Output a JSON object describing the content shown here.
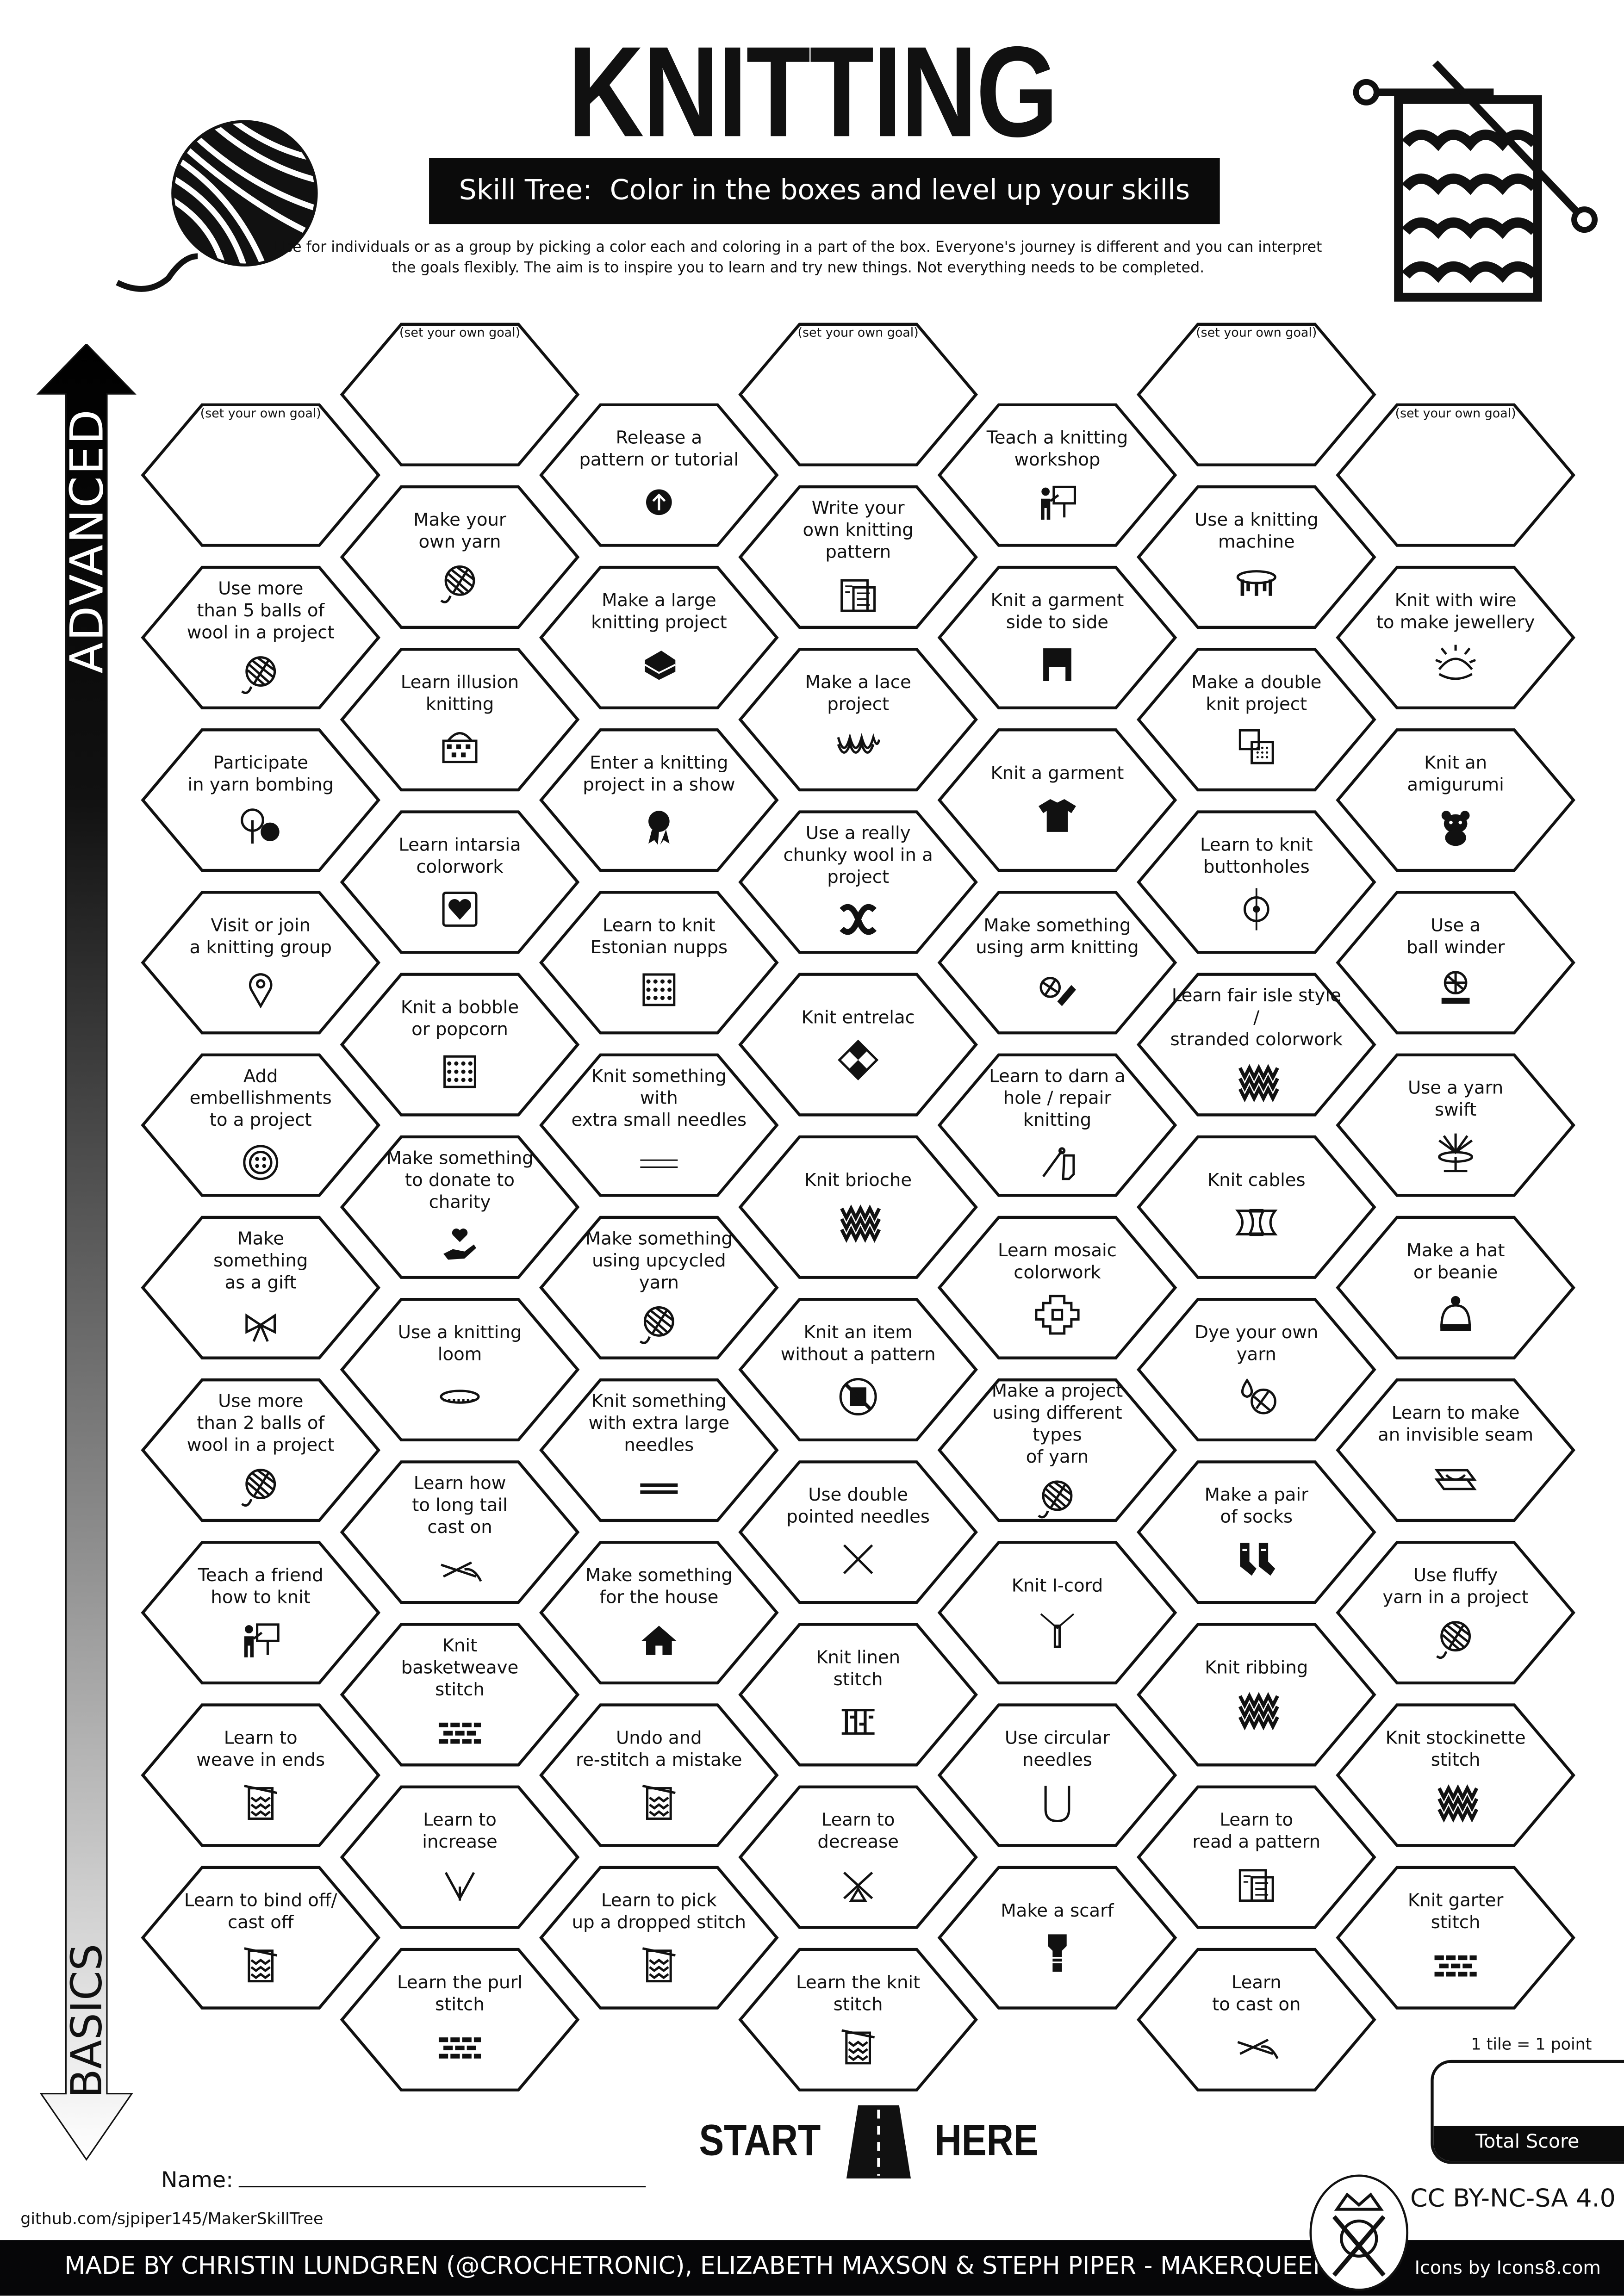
{
  "header": {
    "title": "KNITTING",
    "subtitle": "Skill Tree:  Color in the boxes and level up your skills",
    "intro": "Use for individuals or as a group by picking a color each and coloring in a part of the box.  Everyone's journey is different and you can interpret the goals flexibly.  The aim is to inspire you to learn and try new things. Not everything needs to be completed.",
    "left_icon": "yarn-ball-icon",
    "right_icon": "knitting-needles-icon"
  },
  "axis": {
    "top_label": "ADVANCED",
    "bottom_label": "BASICS"
  },
  "start": {
    "left": "START",
    "right": "HERE",
    "icon": "road-icon"
  },
  "name_label": "Name:",
  "github": "github.com/sjpiper145/MakerSkillTree",
  "score": {
    "rule": "1 tile = 1 point",
    "label": "Total Score"
  },
  "license": "CC BY-NC-SA 4.0",
  "footer": {
    "credits": "MADE BY CHRISTIN LUNDGREN (@CROCHETRONIC), ELIZABETH MAXSON & STEPH PIPER  -  MAKERQUEEN AU",
    "icons_credit": "Icons by Icons8.com",
    "logo": "makerqueen-logo-icon"
  },
  "hex_columns": [
    {
      "hexes": [
        {
          "label": "(set your own goal)",
          "goal": true
        },
        {
          "label": "Use more\nthan 5 balls of\nwool in a project",
          "icon": "yarn-ball"
        },
        {
          "label": "Participate\nin yarn bombing",
          "icon": "tree-yarn"
        },
        {
          "label": "Visit or join\na knitting group",
          "icon": "location-pin"
        },
        {
          "label": "Add\nembellishments\nto a project",
          "icon": "button"
        },
        {
          "label": "Make\nsomething\nas a gift",
          "icon": "gift-bow"
        },
        {
          "label": "Use more\nthan 2 balls of\nwool in a project",
          "icon": "yarn-ball"
        },
        {
          "label": "Teach a friend\nhow to knit",
          "icon": "teacher"
        },
        {
          "label": "Learn to\nweave in ends",
          "icon": "knitting-chart"
        },
        {
          "label": "Learn to bind off/\ncast off",
          "icon": "knitting-chart"
        }
      ]
    },
    {
      "hexes": [
        {
          "label": "(set your own goal)",
          "goal": true
        },
        {
          "label": "Make your\nown yarn",
          "icon": "yarn-ball"
        },
        {
          "label": "Learn illusion\nknitting",
          "icon": "basket"
        },
        {
          "label": "Learn intarsia\ncolorwork",
          "icon": "heart-square"
        },
        {
          "label": "Knit a bobble\nor popcorn",
          "icon": "dots-square"
        },
        {
          "label": "Make something\nto donate to charity",
          "icon": "heart-hand"
        },
        {
          "label": "Use a knitting\nloom",
          "icon": "loom"
        },
        {
          "label": "Learn how\nto long tail\ncast on",
          "icon": "needles-yarn"
        },
        {
          "label": "Knit\nbasketweave\nstitch",
          "icon": "basketweave"
        },
        {
          "label": "Learn to\nincrease",
          "icon": "increase"
        },
        {
          "label": "Learn the purl\nstitch",
          "icon": "purl-stitch"
        }
      ]
    },
    {
      "hexes": [
        {
          "label": "Release a\npattern or tutorial",
          "icon": "upload"
        },
        {
          "label": "Make a large\nknitting project",
          "icon": "blanket"
        },
        {
          "label": "Enter a knitting\nproject in a show",
          "icon": "award-ribbon"
        },
        {
          "label": "Learn to knit\nEstonian nupps",
          "icon": "dots-square"
        },
        {
          "label": "Knit something with\nextra small needles",
          "icon": "needles-thin"
        },
        {
          "label": "Make something\nusing upcycled yarn",
          "icon": "yarn-ball"
        },
        {
          "label": "Knit something\nwith extra large\nneedles",
          "icon": "needles-thick"
        },
        {
          "label": "Make something\nfor the house",
          "icon": "house"
        },
        {
          "label": "Undo and\nre-stitch a mistake",
          "icon": "knitting-chart"
        },
        {
          "label": "Learn to pick\nup a dropped stitch",
          "icon": "knitting-chart"
        }
      ]
    },
    {
      "hexes": [
        {
          "label": "(set your own goal)",
          "goal": true
        },
        {
          "label": "Write your\nown knitting pattern",
          "icon": "pattern-blueprint"
        },
        {
          "label": "Make a lace\nproject",
          "icon": "lace"
        },
        {
          "label": "Use a really\nchunky wool in a\nproject",
          "icon": "chunky-yarn"
        },
        {
          "label": "Knit entrelac",
          "icon": "entrelac"
        },
        {
          "label": "Knit brioche",
          "icon": "v-stitch"
        },
        {
          "label": "Knit an item\nwithout a pattern",
          "icon": "no-pattern"
        },
        {
          "label": "Use double\npointed needles",
          "icon": "crossed-needles"
        },
        {
          "label": "Knit linen\nstitch",
          "icon": "linen-stitch"
        },
        {
          "label": "Learn to\ndecrease",
          "icon": "decrease"
        },
        {
          "label": "Learn the knit\nstitch",
          "icon": "knitting-chart"
        }
      ]
    },
    {
      "hexes": [
        {
          "label": "Teach a knitting\nworkshop",
          "icon": "teacher"
        },
        {
          "label": "Knit a garment\nside to side",
          "icon": "sweater"
        },
        {
          "label": "Knit a garment",
          "icon": "tshirt"
        },
        {
          "label": "Make something\nusing arm knitting",
          "icon": "arm-yarn"
        },
        {
          "label": "Learn to darn a\nhole / repair knitting",
          "icon": "darning"
        },
        {
          "label": "Learn mosaic\ncolorwork",
          "icon": "mosaic"
        },
        {
          "label": "Make a project\nusing different types\nof yarn",
          "icon": "yarn-ball"
        },
        {
          "label": "Knit I-cord",
          "icon": "i-cord"
        },
        {
          "label": "Use circular\nneedles",
          "icon": "circular-needles"
        },
        {
          "label": "Make a scarf",
          "icon": "scarf"
        }
      ]
    },
    {
      "hexes": [
        {
          "label": "(set your own goal)",
          "goal": true
        },
        {
          "label": "Use a knitting\nmachine",
          "icon": "knitting-machine"
        },
        {
          "label": "Make a double\nknit project",
          "icon": "double-knit"
        },
        {
          "label": "Learn to knit\nbuttonholes",
          "icon": "buttonhole"
        },
        {
          "label": "Learn fair isle style /\nstranded colorwork",
          "icon": "v-stitch"
        },
        {
          "label": "Knit cables",
          "icon": "cables"
        },
        {
          "label": "Dye your own\nyarn",
          "icon": "dye-yarn"
        },
        {
          "label": "Make a pair\nof socks",
          "icon": "socks"
        },
        {
          "label": "Knit ribbing",
          "icon": "ribbing"
        },
        {
          "label": "Learn to\nread a pattern",
          "icon": "pattern-blueprint"
        },
        {
          "label": "Learn\nto cast on",
          "icon": "needles-yarn"
        }
      ]
    },
    {
      "hexes": [
        {
          "label": "(set your own goal)",
          "goal": true
        },
        {
          "label": "Knit with wire\nto make jewellery",
          "icon": "wire"
        },
        {
          "label": "Knit an\namigurumi",
          "icon": "amigurumi"
        },
        {
          "label": "Use a\nball winder",
          "icon": "ball-winder"
        },
        {
          "label": "Use a yarn\nswift",
          "icon": "yarn-swift"
        },
        {
          "label": "Make a hat\nor beanie",
          "icon": "beanie"
        },
        {
          "label": "Learn to make\nan invisible seam",
          "icon": "invisible-seam"
        },
        {
          "label": "Use fluffy\nyarn in a project",
          "icon": "yarn-ball"
        },
        {
          "label": "Knit stockinette\nstitch",
          "icon": "v-stitch"
        },
        {
          "label": "Knit garter\nstitch",
          "icon": "garter"
        }
      ]
    }
  ]
}
